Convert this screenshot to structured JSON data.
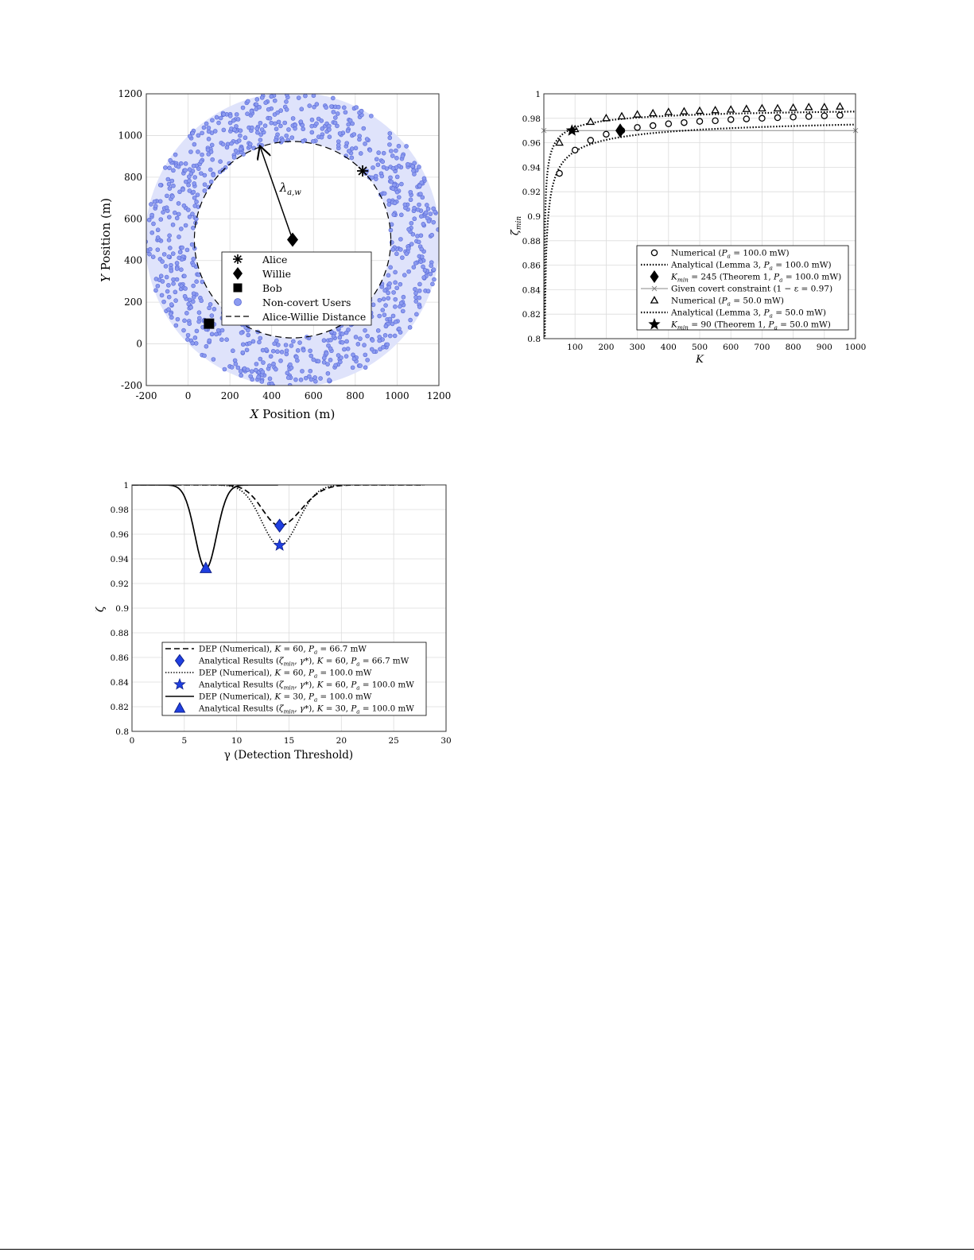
{
  "chart_data": [
    {
      "type": "scatter",
      "xlabel_var": "X",
      "xlabel_rest": " Position (m)",
      "ylabel_var": "Y",
      "ylabel_rest": " Position (m)",
      "xlim": [
        -200,
        1200
      ],
      "ylim": [
        -200,
        1200
      ],
      "xticks": [
        -200,
        0,
        200,
        400,
        600,
        800,
        1000,
        1200
      ],
      "yticks": [
        -200,
        0,
        200,
        400,
        600,
        800,
        1000,
        1200
      ],
      "grid": true,
      "ring": {
        "center": [
          500,
          500
        ],
        "inner_radius": 470,
        "outer_radius": 705,
        "color": "#dfe3fb"
      },
      "users_color": "#8c9bf0",
      "users_count": 900,
      "alice": [
        835,
        830
      ],
      "willie": [
        500,
        500
      ],
      "bob": [
        100,
        97
      ],
      "distance_circle_radius": 470,
      "arrow_from": [
        500,
        500
      ],
      "arrow_to": [
        345,
        945
      ],
      "arrow_label_main": "λ",
      "arrow_label_sub": "a,w",
      "legend_position": "lower-center",
      "legend": [
        "Alice",
        "Willie",
        "Bob",
        "Non-covert Users",
        "Alice-Willie Distance"
      ]
    },
    {
      "type": "line",
      "xlabel": "K",
      "ylabel_main": "ζ",
      "ylabel_sub": "min",
      "xlim": [
        0,
        1000
      ],
      "ylim": [
        0.8,
        1.0
      ],
      "xticks": [
        100,
        200,
        300,
        400,
        500,
        600,
        700,
        800,
        900,
        1000
      ],
      "yticks": [
        0.8,
        0.82,
        0.84,
        0.86,
        0.88,
        0.9,
        0.92,
        0.94,
        0.96,
        0.98,
        1
      ],
      "grid": true,
      "legend_position": "bottom-right",
      "x": [
        50,
        100,
        150,
        200,
        250,
        300,
        350,
        400,
        450,
        500,
        550,
        600,
        650,
        700,
        750,
        800,
        850,
        900,
        950
      ],
      "series": [
        {
          "legend": "Numerical (Pa = 100.0 mW)",
          "marker": "circle",
          "values": [
            0.935,
            0.954,
            0.962,
            0.967,
            0.97,
            0.9725,
            0.974,
            0.9755,
            0.9765,
            0.9775,
            0.978,
            0.979,
            0.9795,
            0.98,
            0.9805,
            0.981,
            0.9815,
            0.982,
            0.9825
          ]
        },
        {
          "legend": "Analytical (Lemma 3, Pa = 100.0 mW)",
          "style": "dotted",
          "A": 0.985,
          "B": 0.32
        },
        {
          "legend": "Kmin = 245 (Theorem 1, Pa = 100.0 mW)",
          "marker": "diamond",
          "point": [
            245,
            0.97
          ]
        },
        {
          "legend": "Given covert constraint (1 − ε = 0.97)",
          "style": "solid-gray",
          "value": 0.97
        },
        {
          "legend": "Numerical (Pa = 50.0 mW)",
          "marker": "triangle",
          "values": [
            0.96,
            0.971,
            0.977,
            0.98,
            0.9815,
            0.983,
            0.984,
            0.985,
            0.9855,
            0.986,
            0.9865,
            0.987,
            0.9875,
            0.988,
            0.988,
            0.9885,
            0.989,
            0.989,
            0.9895
          ]
        },
        {
          "legend": "Analytical (Lemma 3, Pa = 50.0 mW)",
          "style": "dotted",
          "A": 0.9915,
          "B": 0.19
        },
        {
          "legend": "Kmin = 90 (Theorem 1, Pa = 50.0 mW)",
          "marker": "star",
          "point": [
            90,
            0.97
          ]
        }
      ],
      "legend_items": [
        {
          "a": "Numerical (",
          "v": "P",
          "s": "a",
          "b": " = 100.0 mW)"
        },
        {
          "a": "Analytical (Lemma 3, ",
          "v": "P",
          "s": "a",
          "b": " = 100.0 mW)"
        },
        {
          "a": "",
          "v": "K",
          "s": "min",
          "b": " = 245 (Theorem 1, P_a = 100.0 mW)"
        },
        {
          "a": "Given covert constraint (1 − ε = 0.97)",
          "v": "",
          "s": "",
          "b": ""
        },
        {
          "a": "Numerical (",
          "v": "P",
          "s": "a",
          "b": " = 50.0 mW)"
        },
        {
          "a": "Analytical (Lemma 3, ",
          "v": "P",
          "s": "a",
          "b": " = 50.0 mW)"
        },
        {
          "a": "",
          "v": "K",
          "s": "min",
          "b": " = 90 (Theorem 1, P_a = 50.0 mW)"
        }
      ]
    },
    {
      "type": "line",
      "xlabel": "γ (Detection Threshold)",
      "ylabel": "ζ",
      "xlim": [
        0,
        30
      ],
      "ylim": [
        0.8,
        1.0
      ],
      "xticks": [
        0,
        5,
        10,
        15,
        20,
        25,
        30
      ],
      "yticks": [
        0.8,
        0.82,
        0.84,
        0.86,
        0.88,
        0.9,
        0.92,
        0.94,
        0.96,
        0.98,
        1
      ],
      "grid": true,
      "legend_position": "bottom-center",
      "series": [
        {
          "legend": "DEP (Numerical), K = 60, Pa = 66.7 mW",
          "style": "dashed",
          "min": [
            14.1,
            0.967
          ],
          "left_w": 2.3,
          "right_w": 2.9,
          "x_end": 28
        },
        {
          "legend": "Analytical Results (ζmin, γ*), K = 60, Pa = 66.7 mW",
          "marker": "diamond",
          "point": [
            14.1,
            0.967
          ]
        },
        {
          "legend": "DEP (Numerical), K = 60, Pa = 100.0 mW",
          "style": "dotted",
          "min": [
            14.1,
            0.951
          ],
          "left_w": 2.4,
          "right_w": 2.5,
          "x_end": 28
        },
        {
          "legend": "Analytical Results (ζmin, γ*), K = 60, Pa = 100.0 mW",
          "marker": "star",
          "point": [
            14.1,
            0.951
          ]
        },
        {
          "legend": "DEP (Numerical), K = 30, Pa = 100.0 mW",
          "style": "solid",
          "min": [
            7.05,
            0.932
          ],
          "left_w": 1.45,
          "right_w": 1.45,
          "x_end": 14
        },
        {
          "legend": "Analytical Results (ζmin, γ*), K = 30, Pa = 100.0 mW",
          "marker": "triangle",
          "point": [
            7.05,
            0.932
          ]
        }
      ],
      "legend_items": [
        {
          "a": "DEP (Numerical), ",
          "m": "K = 60, P_a = 66.7 mW"
        },
        {
          "a": "Analytical Results (ζ_min, γ*), ",
          "m": "K = 60, P_a = 66.7 mW"
        },
        {
          "a": "DEP (Numerical), ",
          "m": "K = 60, P_a = 100.0 mW"
        },
        {
          "a": "Analytical Results (ζ_min, γ*), ",
          "m": "K = 60, P_a = 100.0 mW"
        },
        {
          "a": "DEP (Numerical), ",
          "m": "K = 30, P_a = 100.0 mW"
        },
        {
          "a": "Analytical Results (ζ_min, γ*), ",
          "m": "K = 30, P_a = 100.0 mW"
        }
      ]
    }
  ]
}
